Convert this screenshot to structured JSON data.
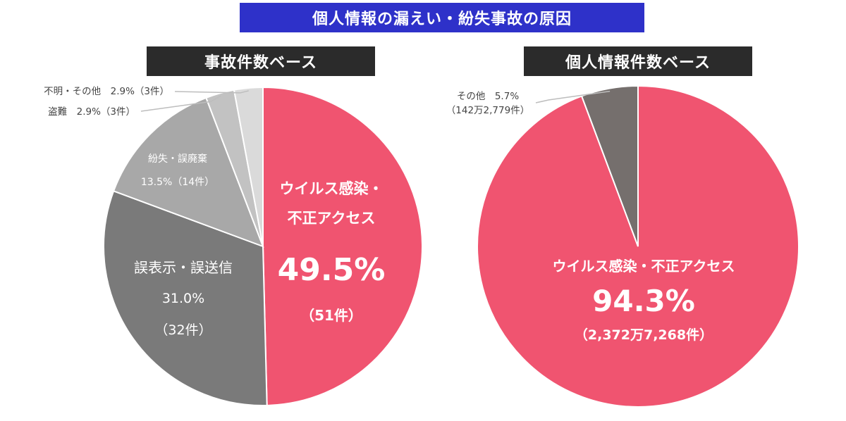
{
  "main_title": "個人情報の漏えい・紛失事故の原因",
  "chart_data": [
    {
      "type": "pie",
      "title": "事故件数ベース",
      "slices": [
        {
          "label": "ウイルス感染・不正アクセス",
          "label_lines": [
            "ウイルス感染・",
            "不正アクセス"
          ],
          "percent_label": "49.5%",
          "value": 49.5,
          "count_label": "（51件）",
          "color": "#f05470"
        },
        {
          "label": "誤表示・誤送信",
          "label_lines": [
            "誤表示・誤送信"
          ],
          "percent_label": "31.0%",
          "value": 31.0,
          "count_label": "（32件）",
          "color": "#7a7a7a"
        },
        {
          "label": "紛失・誤廃棄",
          "label_lines": [
            "紛失・誤廃棄"
          ],
          "percent_label": "13.5%",
          "value": 13.5,
          "count_label": "（14件）",
          "color": "#a8a8a8"
        },
        {
          "label": "盗難",
          "label_lines": [
            "盗難"
          ],
          "percent_label": "2.9%",
          "value": 2.9,
          "count_label": "（3件）",
          "color": "#c2c2c2"
        },
        {
          "label": "不明・その他",
          "label_lines": [
            "不明・その他"
          ],
          "percent_label": "2.9%",
          "value": 2.9,
          "count_label": "（3件）",
          "color": "#dadada"
        }
      ]
    },
    {
      "type": "pie",
      "title": "個人情報件数ベース",
      "slices": [
        {
          "label": "ウイルス感染・不正アクセス",
          "label_lines": [
            "ウイルス感染・不正アクセス"
          ],
          "percent_label": "94.3%",
          "value": 94.3,
          "count_label": "（2,372万7,268件）",
          "color": "#f05470"
        },
        {
          "label": "その他",
          "label_lines": [
            "その他"
          ],
          "percent_label": "5.7%",
          "value": 5.7,
          "count_label": "（142万2,779件）",
          "color": "#756f6d"
        }
      ]
    }
  ]
}
